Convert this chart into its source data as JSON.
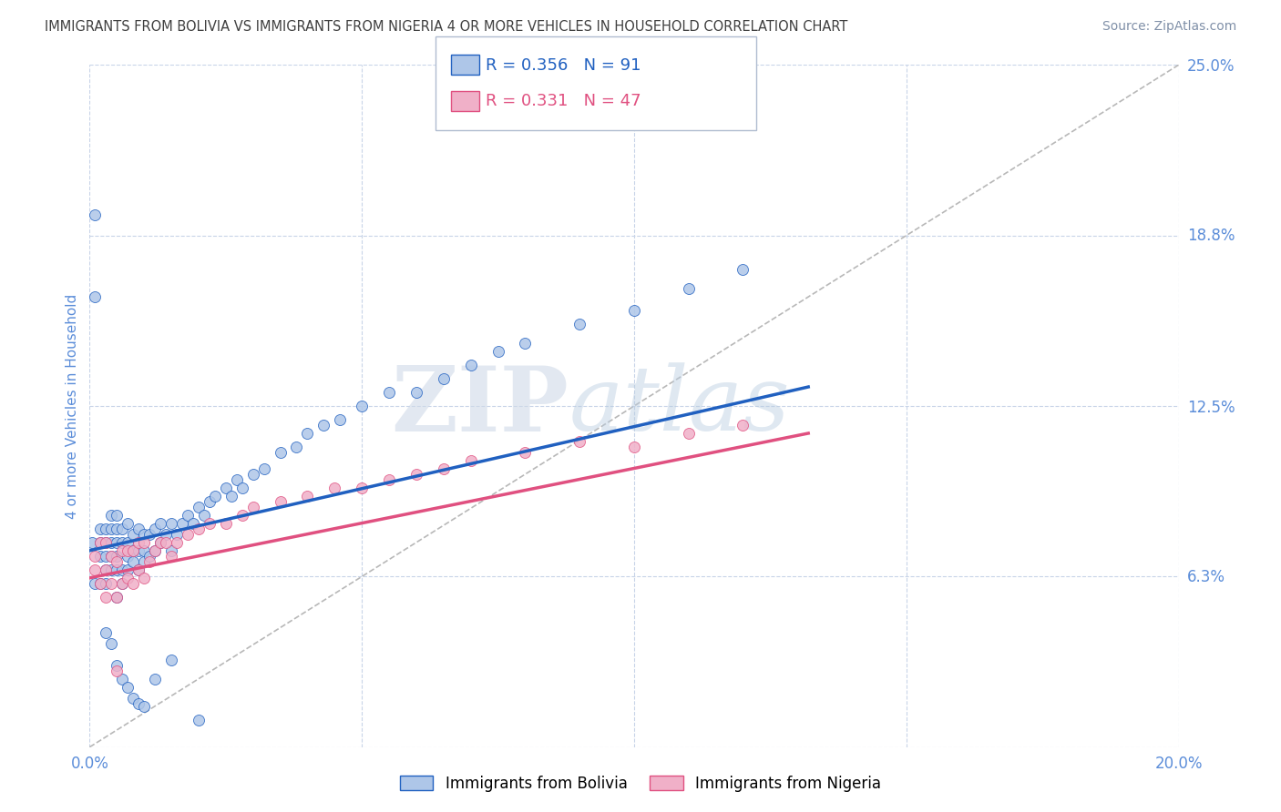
{
  "title": "IMMIGRANTS FROM BOLIVIA VS IMMIGRANTS FROM NIGERIA 4 OR MORE VEHICLES IN HOUSEHOLD CORRELATION CHART",
  "source": "Source: ZipAtlas.com",
  "ylabel": "4 or more Vehicles in Household",
  "x_min": 0.0,
  "x_max": 0.2,
  "y_min": 0.0,
  "y_max": 0.25,
  "bolivia_color": "#aec6e8",
  "nigeria_color": "#f0b0c8",
  "bolivia_R": 0.356,
  "bolivia_N": 91,
  "nigeria_R": 0.331,
  "nigeria_N": 47,
  "trend_blue": "#2060c0",
  "trend_pink": "#e05080",
  "diag_color": "#b8b8b8",
  "legend_label_bolivia": "Immigrants from Bolivia",
  "legend_label_nigeria": "Immigrants from Nigeria",
  "background_color": "#ffffff",
  "grid_color": "#c8d4e8",
  "title_color": "#404040",
  "axis_label_color": "#5b8dd9",
  "bolivia_x": [
    0.0005,
    0.001,
    0.001,
    0.001,
    0.002,
    0.002,
    0.002,
    0.002,
    0.003,
    0.003,
    0.003,
    0.003,
    0.003,
    0.004,
    0.004,
    0.004,
    0.004,
    0.004,
    0.005,
    0.005,
    0.005,
    0.005,
    0.005,
    0.005,
    0.006,
    0.006,
    0.006,
    0.006,
    0.007,
    0.007,
    0.007,
    0.007,
    0.008,
    0.008,
    0.008,
    0.009,
    0.009,
    0.009,
    0.01,
    0.01,
    0.01,
    0.011,
    0.011,
    0.012,
    0.012,
    0.013,
    0.013,
    0.014,
    0.015,
    0.015,
    0.016,
    0.017,
    0.018,
    0.019,
    0.02,
    0.021,
    0.022,
    0.023,
    0.025,
    0.026,
    0.027,
    0.028,
    0.03,
    0.032,
    0.035,
    0.038,
    0.04,
    0.043,
    0.046,
    0.05,
    0.055,
    0.06,
    0.065,
    0.07,
    0.075,
    0.08,
    0.09,
    0.1,
    0.11,
    0.12,
    0.003,
    0.004,
    0.005,
    0.006,
    0.007,
    0.008,
    0.009,
    0.01,
    0.012,
    0.015,
    0.02
  ],
  "bolivia_y": [
    0.075,
    0.195,
    0.165,
    0.06,
    0.06,
    0.07,
    0.075,
    0.08,
    0.06,
    0.065,
    0.07,
    0.075,
    0.08,
    0.065,
    0.07,
    0.075,
    0.08,
    0.085,
    0.055,
    0.065,
    0.07,
    0.075,
    0.08,
    0.085,
    0.06,
    0.065,
    0.075,
    0.08,
    0.065,
    0.07,
    0.075,
    0.082,
    0.068,
    0.072,
    0.078,
    0.065,
    0.072,
    0.08,
    0.068,
    0.072,
    0.078,
    0.07,
    0.078,
    0.072,
    0.08,
    0.075,
    0.082,
    0.078,
    0.072,
    0.082,
    0.078,
    0.082,
    0.085,
    0.082,
    0.088,
    0.085,
    0.09,
    0.092,
    0.095,
    0.092,
    0.098,
    0.095,
    0.1,
    0.102,
    0.108,
    0.11,
    0.115,
    0.118,
    0.12,
    0.125,
    0.13,
    0.13,
    0.135,
    0.14,
    0.145,
    0.148,
    0.155,
    0.16,
    0.168,
    0.175,
    0.042,
    0.038,
    0.03,
    0.025,
    0.022,
    0.018,
    0.016,
    0.015,
    0.025,
    0.032,
    0.01
  ],
  "nigeria_x": [
    0.001,
    0.001,
    0.002,
    0.002,
    0.003,
    0.003,
    0.003,
    0.004,
    0.004,
    0.005,
    0.005,
    0.006,
    0.006,
    0.007,
    0.007,
    0.008,
    0.008,
    0.009,
    0.009,
    0.01,
    0.01,
    0.011,
    0.012,
    0.013,
    0.014,
    0.015,
    0.016,
    0.018,
    0.02,
    0.022,
    0.025,
    0.028,
    0.03,
    0.035,
    0.04,
    0.045,
    0.05,
    0.055,
    0.06,
    0.065,
    0.07,
    0.08,
    0.09,
    0.1,
    0.11,
    0.12,
    0.005
  ],
  "nigeria_y": [
    0.065,
    0.07,
    0.06,
    0.075,
    0.055,
    0.065,
    0.075,
    0.06,
    0.07,
    0.055,
    0.068,
    0.06,
    0.072,
    0.062,
    0.072,
    0.06,
    0.072,
    0.065,
    0.075,
    0.062,
    0.075,
    0.068,
    0.072,
    0.075,
    0.075,
    0.07,
    0.075,
    0.078,
    0.08,
    0.082,
    0.082,
    0.085,
    0.088,
    0.09,
    0.092,
    0.095,
    0.095,
    0.098,
    0.1,
    0.102,
    0.105,
    0.108,
    0.112,
    0.11,
    0.115,
    0.118,
    0.028
  ],
  "bolivia_trend_x0": 0.0,
  "bolivia_trend_x1": 0.132,
  "bolivia_trend_y0": 0.072,
  "bolivia_trend_y1": 0.132,
  "nigeria_trend_x0": 0.0,
  "nigeria_trend_x1": 0.132,
  "nigeria_trend_y0": 0.062,
  "nigeria_trend_y1": 0.115
}
